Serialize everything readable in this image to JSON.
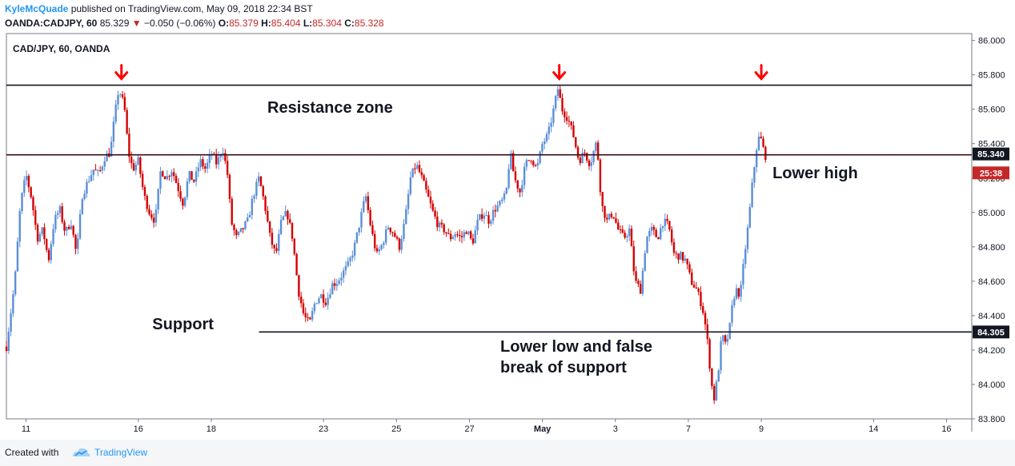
{
  "header": {
    "author": "KyleMcQuade",
    "published_text": "published on TradingView.com, May 09, 2018 22:34 BST",
    "symbol": "OANDA:CADJPY, 60",
    "last": "85.329",
    "change": "−0.050 (−0.06%)",
    "o_label": "O:",
    "o_value": "85.379",
    "h_label": "H:",
    "h_value": "85.404",
    "l_label": "L:",
    "l_value": "85.304",
    "c_label": "C:",
    "c_value": "85.328"
  },
  "footer": {
    "created_with": "Created with",
    "brand": "TradingView"
  },
  "chart_data": {
    "type": "candlestick",
    "title": "CAD/JPY, 60, OANDA",
    "y_ticks": [
      "86.000",
      "85.800",
      "85.600",
      "85.400",
      "85.200",
      "85.000",
      "84.800",
      "84.600",
      "84.400",
      "84.200",
      "84.000",
      "83.800"
    ],
    "ylim": [
      83.8,
      86.04
    ],
    "x_ticks": [
      {
        "label": "11",
        "pos": 0.7
      },
      {
        "label": "16",
        "pos": 4.7
      },
      {
        "label": "18",
        "pos": 7.3
      },
      {
        "label": "23",
        "pos": 11.3
      },
      {
        "label": "25",
        "pos": 13.9
      },
      {
        "label": "27",
        "pos": 16.5
      },
      {
        "label": "May",
        "pos": 19.1
      },
      {
        "label": "3",
        "pos": 21.7
      },
      {
        "label": "7",
        "pos": 24.3
      },
      {
        "label": "9",
        "pos": 26.9
      },
      {
        "label": "14",
        "pos": 30.9
      },
      {
        "label": "16",
        "pos": 33.5
      }
    ],
    "x_range": [
      0,
      34.4
    ],
    "bull_color": "#5b8fd6",
    "bear_color": "#d50000",
    "price_path": [
      [
        0.0,
        84.22
      ],
      [
        0.3,
        84.6
      ],
      [
        0.5,
        85.05
      ],
      [
        0.7,
        85.22
      ],
      [
        0.9,
        85.08
      ],
      [
        1.1,
        84.85
      ],
      [
        1.3,
        84.9
      ],
      [
        1.5,
        84.72
      ],
      [
        1.7,
        84.95
      ],
      [
        1.9,
        85.02
      ],
      [
        2.1,
        84.88
      ],
      [
        2.3,
        84.95
      ],
      [
        2.5,
        84.75
      ],
      [
        2.7,
        85.1
      ],
      [
        2.9,
        85.18
      ],
      [
        3.1,
        85.25
      ],
      [
        3.3,
        85.22
      ],
      [
        3.5,
        85.32
      ],
      [
        3.7,
        85.35
      ],
      [
        3.85,
        85.55
      ],
      [
        4.0,
        85.72
      ],
      [
        4.2,
        85.62
      ],
      [
        4.35,
        85.35
      ],
      [
        4.5,
        85.25
      ],
      [
        4.7,
        85.3
      ],
      [
        4.9,
        85.1
      ],
      [
        5.1,
        85.0
      ],
      [
        5.3,
        84.95
      ],
      [
        5.5,
        85.25
      ],
      [
        5.7,
        85.2
      ],
      [
        5.9,
        85.25
      ],
      [
        6.1,
        85.15
      ],
      [
        6.3,
        85.05
      ],
      [
        6.5,
        85.22
      ],
      [
        6.7,
        85.18
      ],
      [
        6.9,
        85.3
      ],
      [
        7.1,
        85.25
      ],
      [
        7.3,
        85.35
      ],
      [
        7.5,
        85.28
      ],
      [
        7.7,
        85.38
      ],
      [
        7.9,
        85.2
      ],
      [
        8.0,
        84.95
      ],
      [
        8.2,
        84.85
      ],
      [
        8.4,
        84.9
      ],
      [
        8.6,
        84.95
      ],
      [
        8.8,
        85.1
      ],
      [
        9.0,
        85.2
      ],
      [
        9.2,
        85.05
      ],
      [
        9.4,
        84.85
      ],
      [
        9.6,
        84.75
      ],
      [
        9.8,
        84.95
      ],
      [
        10.0,
        85.0
      ],
      [
        10.2,
        84.85
      ],
      [
        10.4,
        84.55
      ],
      [
        10.6,
        84.4
      ],
      [
        10.8,
        84.35
      ],
      [
        11.0,
        84.48
      ],
      [
        11.2,
        84.52
      ],
      [
        11.4,
        84.48
      ],
      [
        11.6,
        84.58
      ],
      [
        11.8,
        84.6
      ],
      [
        12.0,
        84.65
      ],
      [
        12.2,
        84.7
      ],
      [
        12.4,
        84.8
      ],
      [
        12.6,
        84.95
      ],
      [
        12.8,
        85.1
      ],
      [
        13.0,
        84.9
      ],
      [
        13.2,
        84.75
      ],
      [
        13.4,
        84.82
      ],
      [
        13.6,
        84.92
      ],
      [
        13.8,
        84.88
      ],
      [
        14.0,
        84.8
      ],
      [
        14.2,
        84.95
      ],
      [
        14.4,
        85.2
      ],
      [
        14.6,
        85.28
      ],
      [
        14.8,
        85.2
      ],
      [
        15.0,
        85.1
      ],
      [
        15.2,
        85.0
      ],
      [
        15.4,
        84.92
      ],
      [
        15.6,
        84.9
      ],
      [
        15.8,
        84.85
      ],
      [
        16.0,
        84.88
      ],
      [
        16.2,
        84.85
      ],
      [
        16.4,
        84.9
      ],
      [
        16.6,
        84.82
      ],
      [
        16.8,
        84.95
      ],
      [
        17.0,
        85.0
      ],
      [
        17.2,
        84.95
      ],
      [
        17.4,
        85.02
      ],
      [
        17.6,
        85.05
      ],
      [
        17.8,
        85.1
      ],
      [
        17.95,
        85.35
      ],
      [
        18.1,
        85.2
      ],
      [
        18.3,
        85.12
      ],
      [
        18.5,
        85.28
      ],
      [
        18.7,
        85.32
      ],
      [
        18.9,
        85.25
      ],
      [
        19.1,
        85.4
      ],
      [
        19.3,
        85.45
      ],
      [
        19.5,
        85.6
      ],
      [
        19.65,
        85.72
      ],
      [
        19.8,
        85.6
      ],
      [
        20.0,
        85.55
      ],
      [
        20.2,
        85.45
      ],
      [
        20.4,
        85.3
      ],
      [
        20.6,
        85.35
      ],
      [
        20.8,
        85.28
      ],
      [
        21.0,
        85.4
      ],
      [
        21.1,
        85.3
      ],
      [
        21.2,
        85.05
      ],
      [
        21.4,
        84.95
      ],
      [
        21.6,
        85.0
      ],
      [
        21.8,
        84.9
      ],
      [
        22.0,
        84.85
      ],
      [
        22.2,
        84.9
      ],
      [
        22.4,
        84.6
      ],
      [
        22.6,
        84.55
      ],
      [
        22.8,
        84.85
      ],
      [
        23.0,
        84.9
      ],
      [
        23.2,
        84.85
      ],
      [
        23.4,
        84.95
      ],
      [
        23.6,
        84.92
      ],
      [
        23.8,
        84.75
      ],
      [
        24.0,
        84.75
      ],
      [
        24.2,
        84.72
      ],
      [
        24.4,
        84.6
      ],
      [
        24.6,
        84.55
      ],
      [
        24.8,
        84.45
      ],
      [
        24.95,
        84.3
      ],
      [
        25.1,
        84.05
      ],
      [
        25.2,
        83.9
      ],
      [
        25.35,
        84.05
      ],
      [
        25.5,
        84.3
      ],
      [
        25.6,
        84.22
      ],
      [
        25.75,
        84.3
      ],
      [
        25.9,
        84.5
      ],
      [
        26.0,
        84.55
      ],
      [
        26.15,
        84.52
      ],
      [
        26.3,
        84.75
      ],
      [
        26.45,
        84.95
      ],
      [
        26.6,
        85.2
      ],
      [
        26.75,
        85.4
      ],
      [
        26.85,
        85.45
      ],
      [
        26.95,
        85.38
      ],
      [
        27.05,
        85.33
      ]
    ],
    "horizontal_lines": [
      {
        "price": 85.74,
        "from": 0,
        "to": 34.4
      },
      {
        "price": 85.335,
        "from": 0,
        "to": 34.4
      },
      {
        "price": 84.305,
        "from": 9.0,
        "to": 34.4
      }
    ],
    "price_labels": [
      {
        "text": "85.340",
        "price": 85.34,
        "color": "#131722"
      },
      {
        "text": "25:38",
        "price": 85.23,
        "color": "#c62828"
      },
      {
        "text": "84.305",
        "price": 84.305,
        "color": "#131722"
      }
    ],
    "arrows": [
      {
        "x": 4.1,
        "price": 85.8
      },
      {
        "x": 19.7,
        "price": 85.8
      },
      {
        "x": 26.9,
        "price": 85.8
      }
    ],
    "annotations": [
      {
        "text": "Resistance zone",
        "x": 9.3,
        "price": 85.58
      },
      {
        "text": "Lower high",
        "x": 27.3,
        "price": 85.2
      },
      {
        "text": "Support",
        "x": 5.2,
        "price": 84.32
      },
      {
        "text": "Lower low and false",
        "x": 17.6,
        "price": 84.19
      },
      {
        "text": "break of support",
        "x": 17.6,
        "price": 84.07
      }
    ]
  }
}
